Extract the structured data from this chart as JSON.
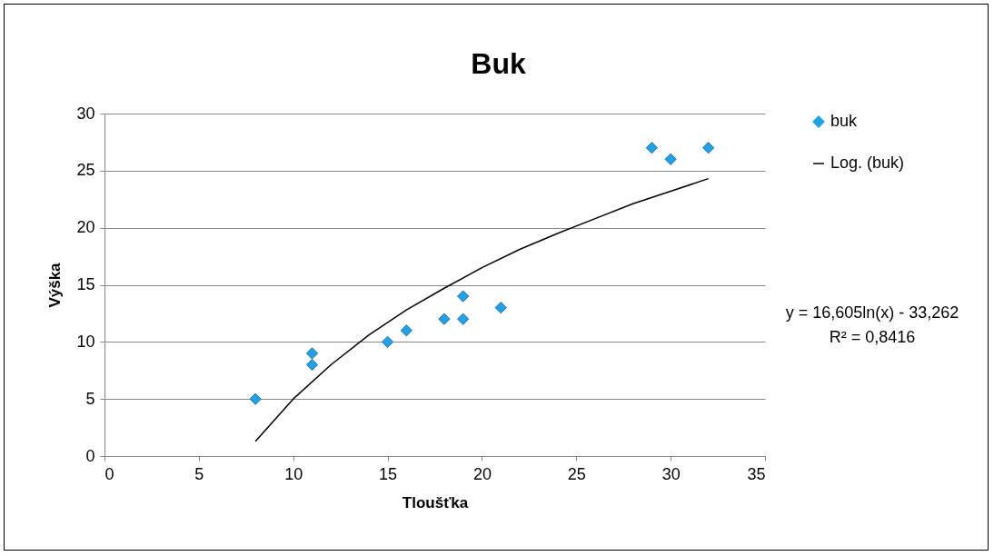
{
  "chart_data": {
    "type": "scatter",
    "title": "Buk",
    "xlabel": "Tloušťka",
    "ylabel": "Výška",
    "xlim": [
      0,
      35
    ],
    "xticks": [
      0,
      5,
      10,
      15,
      20,
      25,
      30,
      35
    ],
    "ylim": [
      0,
      30
    ],
    "yticks": [
      0,
      5,
      10,
      15,
      20,
      25,
      30
    ],
    "grid": "y",
    "legend": "right",
    "annotations": [
      "y = 16,605ln(x) - 33,262",
      "R² = 0,8416"
    ],
    "series": [
      {
        "name": "buk",
        "marker": "diamond",
        "color": "#1fa3e6",
        "x": [
          8,
          11,
          11,
          15,
          16,
          18,
          19,
          19,
          21,
          29,
          30,
          32
        ],
        "values": [
          5,
          9,
          8,
          10,
          11,
          12,
          14,
          12,
          13,
          27,
          26,
          27
        ]
      },
      {
        "name": "Log. (buk)",
        "type": "line",
        "marker": "none",
        "color": "#000000",
        "line_style": "solid",
        "x": [
          8,
          10,
          12,
          14,
          16,
          18,
          20,
          22,
          24,
          26,
          28,
          30,
          32
        ],
        "values": [
          1.3,
          5.0,
          8.0,
          10.6,
          12.8,
          14.7,
          16.5,
          18.1,
          19.5,
          20.8,
          22.1,
          23.2,
          24.3
        ]
      }
    ]
  }
}
